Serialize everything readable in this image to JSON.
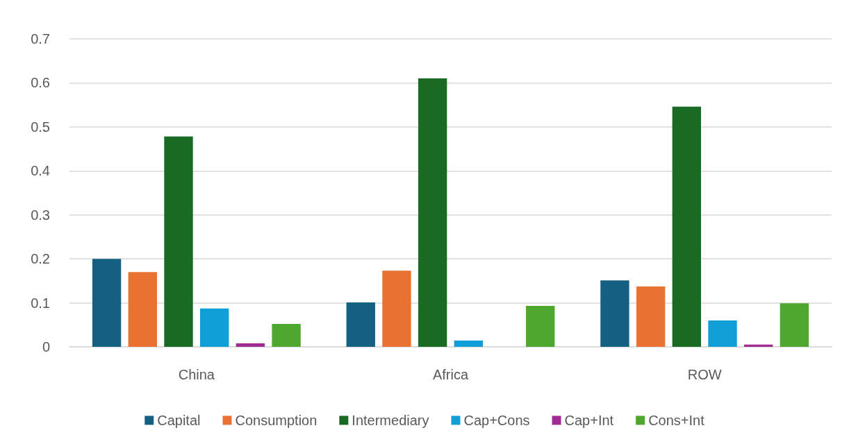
{
  "chart_data": {
    "type": "bar",
    "categories": [
      "China",
      "Africa",
      "ROW"
    ],
    "series": [
      {
        "name": "Capital",
        "color": "#156082",
        "values": [
          0.2,
          0.101,
          0.151
        ]
      },
      {
        "name": "Consumption",
        "color": "#e97132",
        "values": [
          0.17,
          0.173,
          0.137
        ]
      },
      {
        "name": "Intermediary",
        "color": "#196b24",
        "values": [
          0.478,
          0.61,
          0.546
        ]
      },
      {
        "name": "Cap+Cons",
        "color": "#0f9ed5",
        "values": [
          0.087,
          0.014,
          0.06
        ]
      },
      {
        "name": "Cap+Int",
        "color": "#a02b93",
        "values": [
          0.008,
          0,
          0.005
        ]
      },
      {
        "name": "Cons+Int",
        "color": "#4ea72e",
        "values": [
          0.052,
          0.093,
          0.099
        ]
      }
    ],
    "ylim": [
      0,
      0.7
    ],
    "yticks": [
      0,
      0.1,
      0.2,
      0.3,
      0.4,
      0.5,
      0.6,
      0.7
    ],
    "grid": "y",
    "legend": "bottom"
  }
}
